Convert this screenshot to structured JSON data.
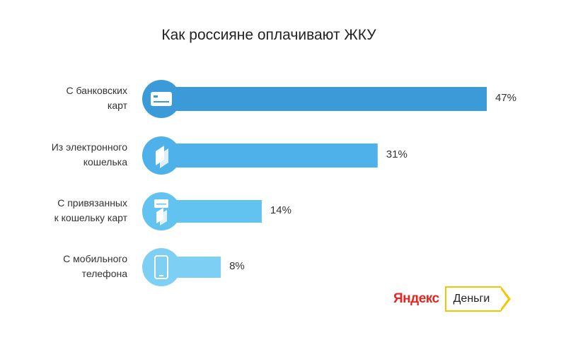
{
  "title": "Как россияне оплачивают ЖКУ",
  "chart_data": {
    "type": "bar",
    "orientation": "horizontal",
    "title": "Как россияне оплачивают ЖКУ",
    "categories": [
      "С банковских\nкарт",
      "Из электронного\nкошелька",
      "С привязанных\nк кошельку карт",
      "С мобильного\nтелефона"
    ],
    "values": [
      47,
      31,
      14,
      8
    ],
    "value_labels": [
      "47%",
      "31%",
      "14%",
      "8%"
    ],
    "icons": [
      "bank-card-icon",
      "wallet-icon",
      "card-and-wallet-icon",
      "mobile-phone-icon"
    ],
    "colors": [
      "#3b9bd9",
      "#4fb1ea",
      "#63c3f0",
      "#7dd0f3"
    ],
    "xlim": [
      0,
      47
    ],
    "grid": false,
    "legend": "none"
  },
  "logo": {
    "yandex": "Яндекс",
    "money": "Деньги"
  }
}
